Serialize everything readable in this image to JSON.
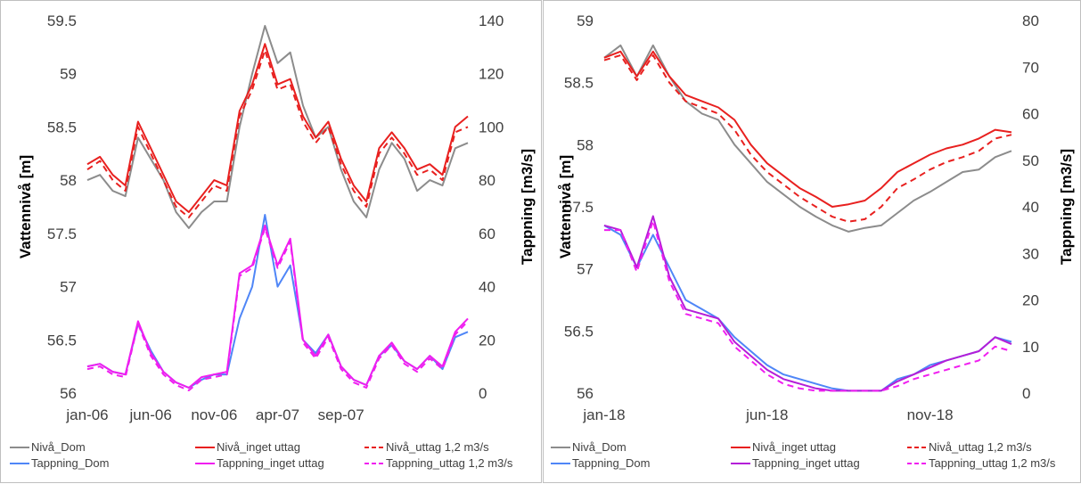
{
  "chart_data": [
    {
      "type": "line",
      "ylabel": "Vattennivå [m]",
      "y2label": "Tappning [m3/s]",
      "xlabels": [
        "jan-06",
        "jun-06",
        "nov-06",
        "apr-07",
        "sep-07"
      ],
      "ylim": [
        56,
        59.5
      ],
      "yticks": [
        "59.5",
        "59",
        "58.5",
        "58",
        "57.5",
        "57",
        "56.5",
        "56"
      ],
      "y2lim": [
        0,
        140
      ],
      "y2ticks": [
        "140",
        "120",
        "100",
        "80",
        "60",
        "40",
        "20",
        "0"
      ],
      "legend": "bottom",
      "legend_entries": [
        "Nivå_Dom",
        "Nivå_inget uttag",
        "Nivå_uttag 1,2 m3/s",
        "Tappning_Dom",
        "Tappning_inget uttag",
        "Tappning_uttag 1,2 m3/s"
      ],
      "colors": {
        "nivadom": "#8c8c8c",
        "nivainget": "#e8201f",
        "tappdom": "#4f86f7",
        "tappinget": "#f01ef0"
      },
      "x_label_index": [
        0,
        5,
        10,
        15,
        20
      ],
      "series": [
        {
          "name": "Nivå_Dom",
          "axis": "left",
          "dash": false,
          "color": "#8c8c8c",
          "values": [
            58.0,
            58.05,
            57.9,
            57.85,
            58.4,
            58.2,
            58.0,
            57.7,
            57.55,
            57.7,
            57.8,
            57.8,
            58.5,
            59.0,
            59.45,
            59.1,
            59.2,
            58.7,
            58.4,
            58.5,
            58.1,
            57.8,
            57.65,
            58.1,
            58.35,
            58.2,
            57.9,
            58.0,
            57.95,
            58.3,
            58.35
          ]
        },
        {
          "name": "Nivå_inget uttag",
          "axis": "left",
          "dash": false,
          "color": "#e8201f",
          "values": [
            58.15,
            58.22,
            58.05,
            57.95,
            58.55,
            58.3,
            58.05,
            57.8,
            57.7,
            57.85,
            58.0,
            57.95,
            58.65,
            58.9,
            59.28,
            58.9,
            58.95,
            58.6,
            58.4,
            58.55,
            58.2,
            57.95,
            57.8,
            58.3,
            58.45,
            58.3,
            58.1,
            58.15,
            58.05,
            58.5,
            58.6
          ]
        },
        {
          "name": "Nivå_uttag 1,2 m3/s",
          "axis": "left",
          "dash": true,
          "color": "#e8201f",
          "values": [
            58.1,
            58.18,
            58.0,
            57.9,
            58.5,
            58.25,
            58.0,
            57.75,
            57.65,
            57.8,
            57.95,
            57.9,
            58.6,
            58.85,
            59.22,
            58.85,
            58.9,
            58.55,
            58.35,
            58.5,
            58.15,
            57.9,
            57.75,
            58.25,
            58.4,
            58.25,
            58.05,
            58.1,
            58.0,
            58.45,
            58.5
          ]
        },
        {
          "name": "Tappning_Dom",
          "axis": "right",
          "dash": false,
          "color": "#4f86f7",
          "values": [
            10,
            11,
            8,
            7,
            26,
            16,
            8,
            4,
            2,
            5,
            7,
            7,
            28,
            40,
            67,
            40,
            48,
            20,
            15,
            22,
            10,
            5,
            3,
            14,
            18,
            12,
            9,
            14,
            9,
            21,
            23
          ]
        },
        {
          "name": "Tappning_inget uttag",
          "axis": "right",
          "dash": false,
          "color": "#f01ef0",
          "values": [
            10,
            11,
            8,
            7,
            27,
            15,
            8,
            4,
            2,
            6,
            7,
            8,
            45,
            48,
            63,
            48,
            58,
            20,
            14,
            22,
            10,
            5,
            3,
            14,
            19,
            12,
            9,
            14,
            10,
            23,
            28
          ]
        },
        {
          "name": "Tappning_uttag 1,2 m3/s",
          "axis": "right",
          "dash": true,
          "color": "#f01ef0",
          "values": [
            9,
            10,
            7,
            6,
            26,
            14,
            7,
            3,
            1,
            5,
            6,
            7,
            44,
            47,
            62,
            47,
            57,
            19,
            13,
            21,
            9,
            4,
            2,
            13,
            18,
            11,
            8,
            13,
            9,
            22,
            27
          ]
        }
      ]
    },
    {
      "type": "line",
      "ylabel": "Vattennivå [m]",
      "y2label": "Tappning [m3/s]",
      "xlabels": [
        "jan-18",
        "jun-18",
        "nov-18"
      ],
      "ylim": [
        56,
        59
      ],
      "yticks": [
        "59",
        "58.5",
        "58",
        "57.5",
        "57",
        "56.5",
        "56"
      ],
      "y2lim": [
        0,
        80
      ],
      "y2ticks": [
        "80",
        "70",
        "60",
        "50",
        "40",
        "30",
        "20",
        "10",
        "0"
      ],
      "legend": "bottom",
      "legend_entries": [
        "Nivå_Dom",
        "Nivå_inget uttag",
        "Nivå_uttag 1,2 m3/s",
        "Tappning_Dom",
        "Tappning_inget uttag",
        "Tappning_uttag 1,2 m3/s"
      ],
      "colors": {
        "nivadom": "#8c8c8c",
        "nivainget": "#e8201f",
        "tappdom": "#4f86f7",
        "tappinget": "#b41ed8"
      },
      "x_label_index": [
        0,
        10,
        20
      ],
      "series": [
        {
          "name": "Nivå_Dom",
          "axis": "left",
          "dash": false,
          "color": "#8c8c8c",
          "values": [
            58.7,
            58.8,
            58.55,
            58.8,
            58.55,
            58.35,
            58.25,
            58.2,
            58.0,
            57.85,
            57.7,
            57.6,
            57.5,
            57.42,
            57.35,
            57.3,
            57.33,
            57.35,
            57.45,
            57.55,
            57.62,
            57.7,
            57.78,
            57.8,
            57.9,
            57.95
          ]
        },
        {
          "name": "Nivå_inget uttag",
          "axis": "left",
          "dash": false,
          "color": "#e8201f",
          "values": [
            58.7,
            58.75,
            58.55,
            58.75,
            58.55,
            58.4,
            58.35,
            58.3,
            58.2,
            58.0,
            57.85,
            57.75,
            57.65,
            57.58,
            57.5,
            57.52,
            57.55,
            57.65,
            57.78,
            57.85,
            57.92,
            57.97,
            58.0,
            58.05,
            58.12,
            58.1
          ]
        },
        {
          "name": "Nivå_uttag 1,2 m3/s",
          "axis": "left",
          "dash": true,
          "color": "#e8201f",
          "values": [
            58.68,
            58.72,
            58.52,
            58.72,
            58.5,
            58.35,
            58.3,
            58.25,
            58.12,
            57.92,
            57.78,
            57.68,
            57.58,
            57.5,
            57.42,
            57.38,
            57.4,
            57.5,
            57.65,
            57.72,
            57.8,
            57.86,
            57.9,
            57.95,
            58.05,
            58.08
          ]
        },
        {
          "name": "Tappning_Dom",
          "axis": "right",
          "dash": false,
          "color": "#4f86f7",
          "values": [
            36,
            34,
            27,
            34,
            27,
            20,
            18,
            16,
            12,
            9,
            6,
            4,
            3,
            2,
            1,
            0.5,
            0.5,
            0.5,
            3,
            4,
            6,
            7,
            8,
            9,
            12,
            11
          ]
        },
        {
          "name": "Tappning_inget uttag",
          "axis": "right",
          "dash": false,
          "color": "#b41ed8",
          "values": [
            36,
            35,
            27,
            38,
            25,
            18,
            17,
            16,
            11,
            8,
            5,
            3,
            2,
            1,
            0.5,
            0.5,
            0.5,
            0.5,
            2.5,
            4,
            5.5,
            7,
            8,
            9,
            12,
            10.5
          ]
        },
        {
          "name": "Tappning_uttag 1,2 m3/s",
          "axis": "right",
          "dash": true,
          "color": "#f01ef0",
          "values": [
            35,
            35,
            26,
            37,
            24,
            17,
            16,
            15,
            10,
            7,
            4,
            2,
            1,
            0.5,
            0.5,
            0.5,
            0.5,
            0.5,
            1.5,
            3,
            4,
            5,
            6,
            7,
            10,
            9
          ]
        }
      ]
    }
  ]
}
